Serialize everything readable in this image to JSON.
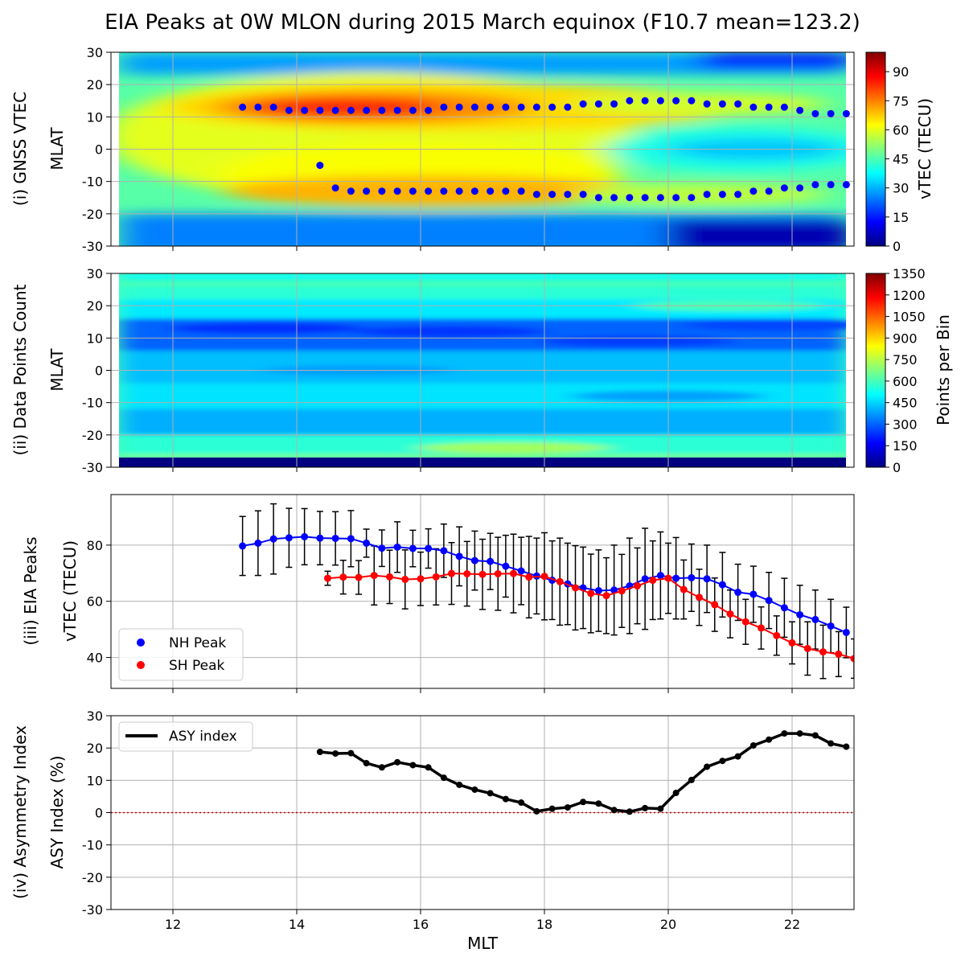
{
  "title": "EIA Peaks at 0W MLON during 2015 March equinox (F10.7 mean=123.2)",
  "x_axis": {
    "label": "MLT",
    "range": [
      11.0,
      23.0
    ],
    "ticks": [
      12,
      14,
      16,
      18,
      20,
      22
    ]
  },
  "colors": {
    "nh": "#0000ff",
    "sh": "#ff0000",
    "asy": "#000000",
    "zero_line": "#cc0000",
    "errorbar": "#000000"
  },
  "chart_data": [
    {
      "panel": "(i)",
      "type": "heatmap",
      "ylabel_outer": "(i) GNSS VTEC",
      "ylabel": "MLAT",
      "ylim": [
        -30,
        30
      ],
      "yticks": [
        30,
        20,
        10,
        0,
        -10,
        -20,
        -30
      ],
      "colorbar": {
        "label": "vTEC (TECU)",
        "range": [
          0,
          100
        ],
        "ticks": [
          0,
          15,
          30,
          45,
          60,
          75,
          90
        ]
      },
      "field_description_values": {
        "nh_crest_peak_vtec": 84,
        "sh_crest_peak_vtec": 70,
        "trough_min_vtec": 32,
        "pole_min_vtec": 5
      },
      "series": [
        {
          "legend": "NH peak location",
          "x": [
            13.125,
            13.375,
            13.625,
            13.875,
            14.125,
            14.375,
            14.625,
            14.875,
            15.125,
            15.375,
            15.625,
            15.875,
            16.125,
            16.375,
            16.625,
            16.875,
            17.125,
            17.375,
            17.625,
            17.875,
            18.125,
            18.375,
            18.625,
            18.875,
            19.125,
            19.375,
            19.625,
            19.875,
            20.125,
            20.375,
            20.625,
            20.875,
            21.125,
            21.375,
            21.625,
            21.875,
            22.125,
            22.375,
            22.625,
            22.875
          ],
          "values": [
            13,
            13,
            13,
            12,
            12,
            12,
            12,
            12,
            12,
            12,
            12,
            12,
            12,
            13,
            13,
            13,
            13,
            13,
            13,
            13,
            13,
            13,
            14,
            14,
            14,
            15,
            15,
            15,
            15,
            15,
            14,
            14,
            14,
            13,
            13,
            13,
            12,
            11,
            11,
            11
          ]
        },
        {
          "legend": "SH peak location",
          "x": [
            14.375,
            14.625,
            14.875,
            15.125,
            15.375,
            15.625,
            15.875,
            16.125,
            16.375,
            16.625,
            16.875,
            17.125,
            17.375,
            17.625,
            17.875,
            18.125,
            18.375,
            18.625,
            18.875,
            19.125,
            19.375,
            19.625,
            19.875,
            20.125,
            20.375,
            20.625,
            20.875,
            21.125,
            21.375,
            21.625,
            21.875,
            22.125,
            22.375,
            22.625,
            22.875
          ],
          "values": [
            -5,
            -12,
            -13,
            -13,
            -13,
            -13,
            -13,
            -13,
            -13,
            -13,
            -13,
            -13,
            -13,
            -13,
            -14,
            -14,
            -14,
            -14,
            -15,
            -15,
            -15,
            -15,
            -15,
            -15,
            -15,
            -14,
            -14,
            -14,
            -13,
            -13,
            -12,
            -12,
            -11,
            -11,
            -11
          ]
        }
      ]
    },
    {
      "panel": "(ii)",
      "type": "heatmap",
      "ylabel_outer": "(ii) Data Points Count",
      "ylabel": "MLAT",
      "ylim": [
        -30,
        30
      ],
      "yticks": [
        30,
        20,
        10,
        0,
        -10,
        -20,
        -30
      ],
      "colorbar": {
        "label": "Points per Bin",
        "range": [
          0,
          1350
        ],
        "ticks": [
          0,
          150,
          300,
          450,
          600,
          750,
          900,
          1050,
          1200,
          1350
        ]
      },
      "field_description_values": {
        "mid_band_count": 300,
        "high_lat_count": 600,
        "south_edge_count": 0
      }
    },
    {
      "panel": "(iii)",
      "type": "line",
      "ylabel_outer": "(iii) EIA Peaks",
      "ylabel": "vTEC (TECU)",
      "ylim": [
        29,
        98
      ],
      "yticks": [
        80,
        60,
        40
      ],
      "legend": {
        "location": "lower-left",
        "entries": [
          "NH Peak",
          "SH Peak"
        ]
      },
      "series": [
        {
          "name": "NH Peak",
          "x": [
            13.125,
            13.375,
            13.625,
            13.875,
            14.125,
            14.375,
            14.625,
            14.875,
            15.125,
            15.375,
            15.625,
            15.875,
            16.125,
            16.375,
            16.625,
            16.875,
            17.125,
            17.375,
            17.625,
            17.875,
            18.125,
            18.375,
            18.625,
            18.875,
            19.125,
            19.375,
            19.625,
            19.875,
            20.125,
            20.375,
            20.625,
            20.875,
            21.125,
            21.375,
            21.625,
            21.875,
            22.125,
            22.375,
            22.625,
            22.875
          ],
          "values": [
            79.7,
            80.7,
            82.2,
            82.6,
            83.0,
            82.5,
            82.4,
            82.3,
            80.7,
            78.9,
            79.3,
            78.8,
            78.8,
            78.0,
            76.0,
            74.5,
            74.2,
            72.5,
            70.8,
            69.0,
            67.5,
            66.2,
            64.8,
            63.8,
            64.0,
            65.5,
            68.0,
            69.2,
            68.2,
            68.4,
            68.0,
            65.9,
            63.2,
            62.5,
            60.3,
            57.7,
            55.2,
            53.5,
            51.2,
            48.9
          ],
          "errors": [
            10.5,
            11.5,
            12.5,
            10.5,
            10.0,
            9.5,
            9.5,
            10.0,
            5.0,
            6.5,
            9.0,
            6.5,
            7.0,
            9.5,
            10.5,
            10.5,
            10.0,
            11.0,
            12.0,
            13.5,
            14.0,
            14.5,
            14.5,
            14.5,
            16.0,
            17.0,
            18.0,
            15.5,
            14.5,
            12.0,
            12.0,
            11.5,
            10.0,
            10.0,
            10.0,
            10.5,
            10.5,
            10.5,
            9.5,
            9.0
          ]
        },
        {
          "name": "SH Peak",
          "x": [
            14.5,
            14.75,
            15.0,
            15.25,
            15.5,
            15.75,
            16.0,
            16.25,
            16.5,
            16.75,
            17.0,
            17.25,
            17.5,
            17.75,
            18.0,
            18.25,
            18.5,
            18.75,
            19.0,
            19.25,
            19.5,
            19.75,
            20.0,
            20.25,
            20.5,
            20.75,
            21.0,
            21.25,
            21.5,
            21.75,
            22.0,
            22.25,
            22.5,
            22.75,
            23.0
          ],
          "values": [
            68.2,
            68.6,
            68.5,
            69.2,
            68.7,
            67.8,
            68.0,
            68.7,
            69.9,
            69.8,
            69.6,
            69.8,
            69.9,
            68.6,
            68.9,
            67.0,
            64.8,
            62.8,
            62.0,
            63.7,
            65.5,
            67.5,
            68.2,
            64.2,
            61.4,
            58.8,
            55.5,
            52.7,
            50.5,
            47.8,
            45.2,
            43.2,
            42.0,
            41.2,
            39.6
          ],
          "errors": [
            2.5,
            6.0,
            6.0,
            10.5,
            9.5,
            10.5,
            9.5,
            10.0,
            11.0,
            11.5,
            12.5,
            13.0,
            14.0,
            14.5,
            15.5,
            15.5,
            15.0,
            14.0,
            13.5,
            13.0,
            13.5,
            14.0,
            12.5,
            10.5,
            10.0,
            9.5,
            8.5,
            8.0,
            7.5,
            7.0,
            7.5,
            9.5,
            9.5,
            8.0,
            7.0
          ]
        }
      ]
    },
    {
      "panel": "(iv)",
      "type": "line",
      "ylabel_outer": "(iv) Asymmetry Index",
      "ylabel": "ASY Index (%)",
      "ylim": [
        -30,
        30
      ],
      "yticks": [
        30,
        20,
        10,
        0,
        -10,
        -20,
        -30
      ],
      "legend": {
        "location": "upper-left",
        "entries": [
          "ASY index"
        ]
      },
      "series": [
        {
          "name": "ASY index",
          "x": [
            14.375,
            14.625,
            14.875,
            15.125,
            15.375,
            15.625,
            15.875,
            16.125,
            16.375,
            16.625,
            16.875,
            17.125,
            17.375,
            17.625,
            17.875,
            18.125,
            18.375,
            18.625,
            18.875,
            19.125,
            19.375,
            19.625,
            19.875,
            20.125,
            20.375,
            20.625,
            20.875,
            21.125,
            21.375,
            21.625,
            21.875,
            22.125,
            22.375,
            22.625,
            22.875
          ],
          "values": [
            18.8,
            18.3,
            18.4,
            15.3,
            14.0,
            15.6,
            14.7,
            14.0,
            10.8,
            8.6,
            7.1,
            6.0,
            4.2,
            3.1,
            0.4,
            1.2,
            1.6,
            3.3,
            2.8,
            0.8,
            0.3,
            1.4,
            1.2,
            6.1,
            10.1,
            14.2,
            16.0,
            17.4,
            20.8,
            22.6,
            24.5,
            24.5,
            23.9,
            21.4,
            20.4
          ]
        }
      ],
      "reference_line": {
        "y": 0
      }
    }
  ]
}
